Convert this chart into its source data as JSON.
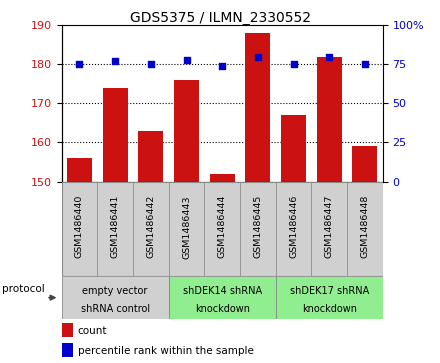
{
  "title": "GDS5375 / ILMN_2330552",
  "samples": [
    "GSM1486440",
    "GSM1486441",
    "GSM1486442",
    "GSM1486443",
    "GSM1486444",
    "GSM1486445",
    "GSM1486446",
    "GSM1486447",
    "GSM1486448"
  ],
  "counts": [
    156,
    174,
    163,
    176,
    152,
    188,
    167,
    182,
    159
  ],
  "percentiles": [
    75,
    77,
    75,
    78,
    74,
    80,
    75,
    80,
    75
  ],
  "ylim_left": [
    150,
    190
  ],
  "ylim_right": [
    0,
    100
  ],
  "yticks_left": [
    150,
    160,
    170,
    180,
    190
  ],
  "yticks_right": [
    0,
    25,
    50,
    75,
    100
  ],
  "bar_color": "#cc1111",
  "dot_color": "#0000cc",
  "group_colors": [
    "#d0d0d0",
    "#90ee90",
    "#90ee90"
  ],
  "group_texts": [
    "empty vector\nshRNA control",
    "shDEK14 shRNA\nknockdown",
    "shDEK17 shRNA\nknockdown"
  ],
  "group_starts": [
    0,
    3,
    6
  ],
  "group_ends": [
    3,
    6,
    9
  ],
  "protocol_label": "protocol",
  "legend_count_label": "count",
  "legend_percentile_label": "percentile rank within the sample",
  "sample_box_color": "#d0d0d0",
  "plot_bg": "#ffffff"
}
